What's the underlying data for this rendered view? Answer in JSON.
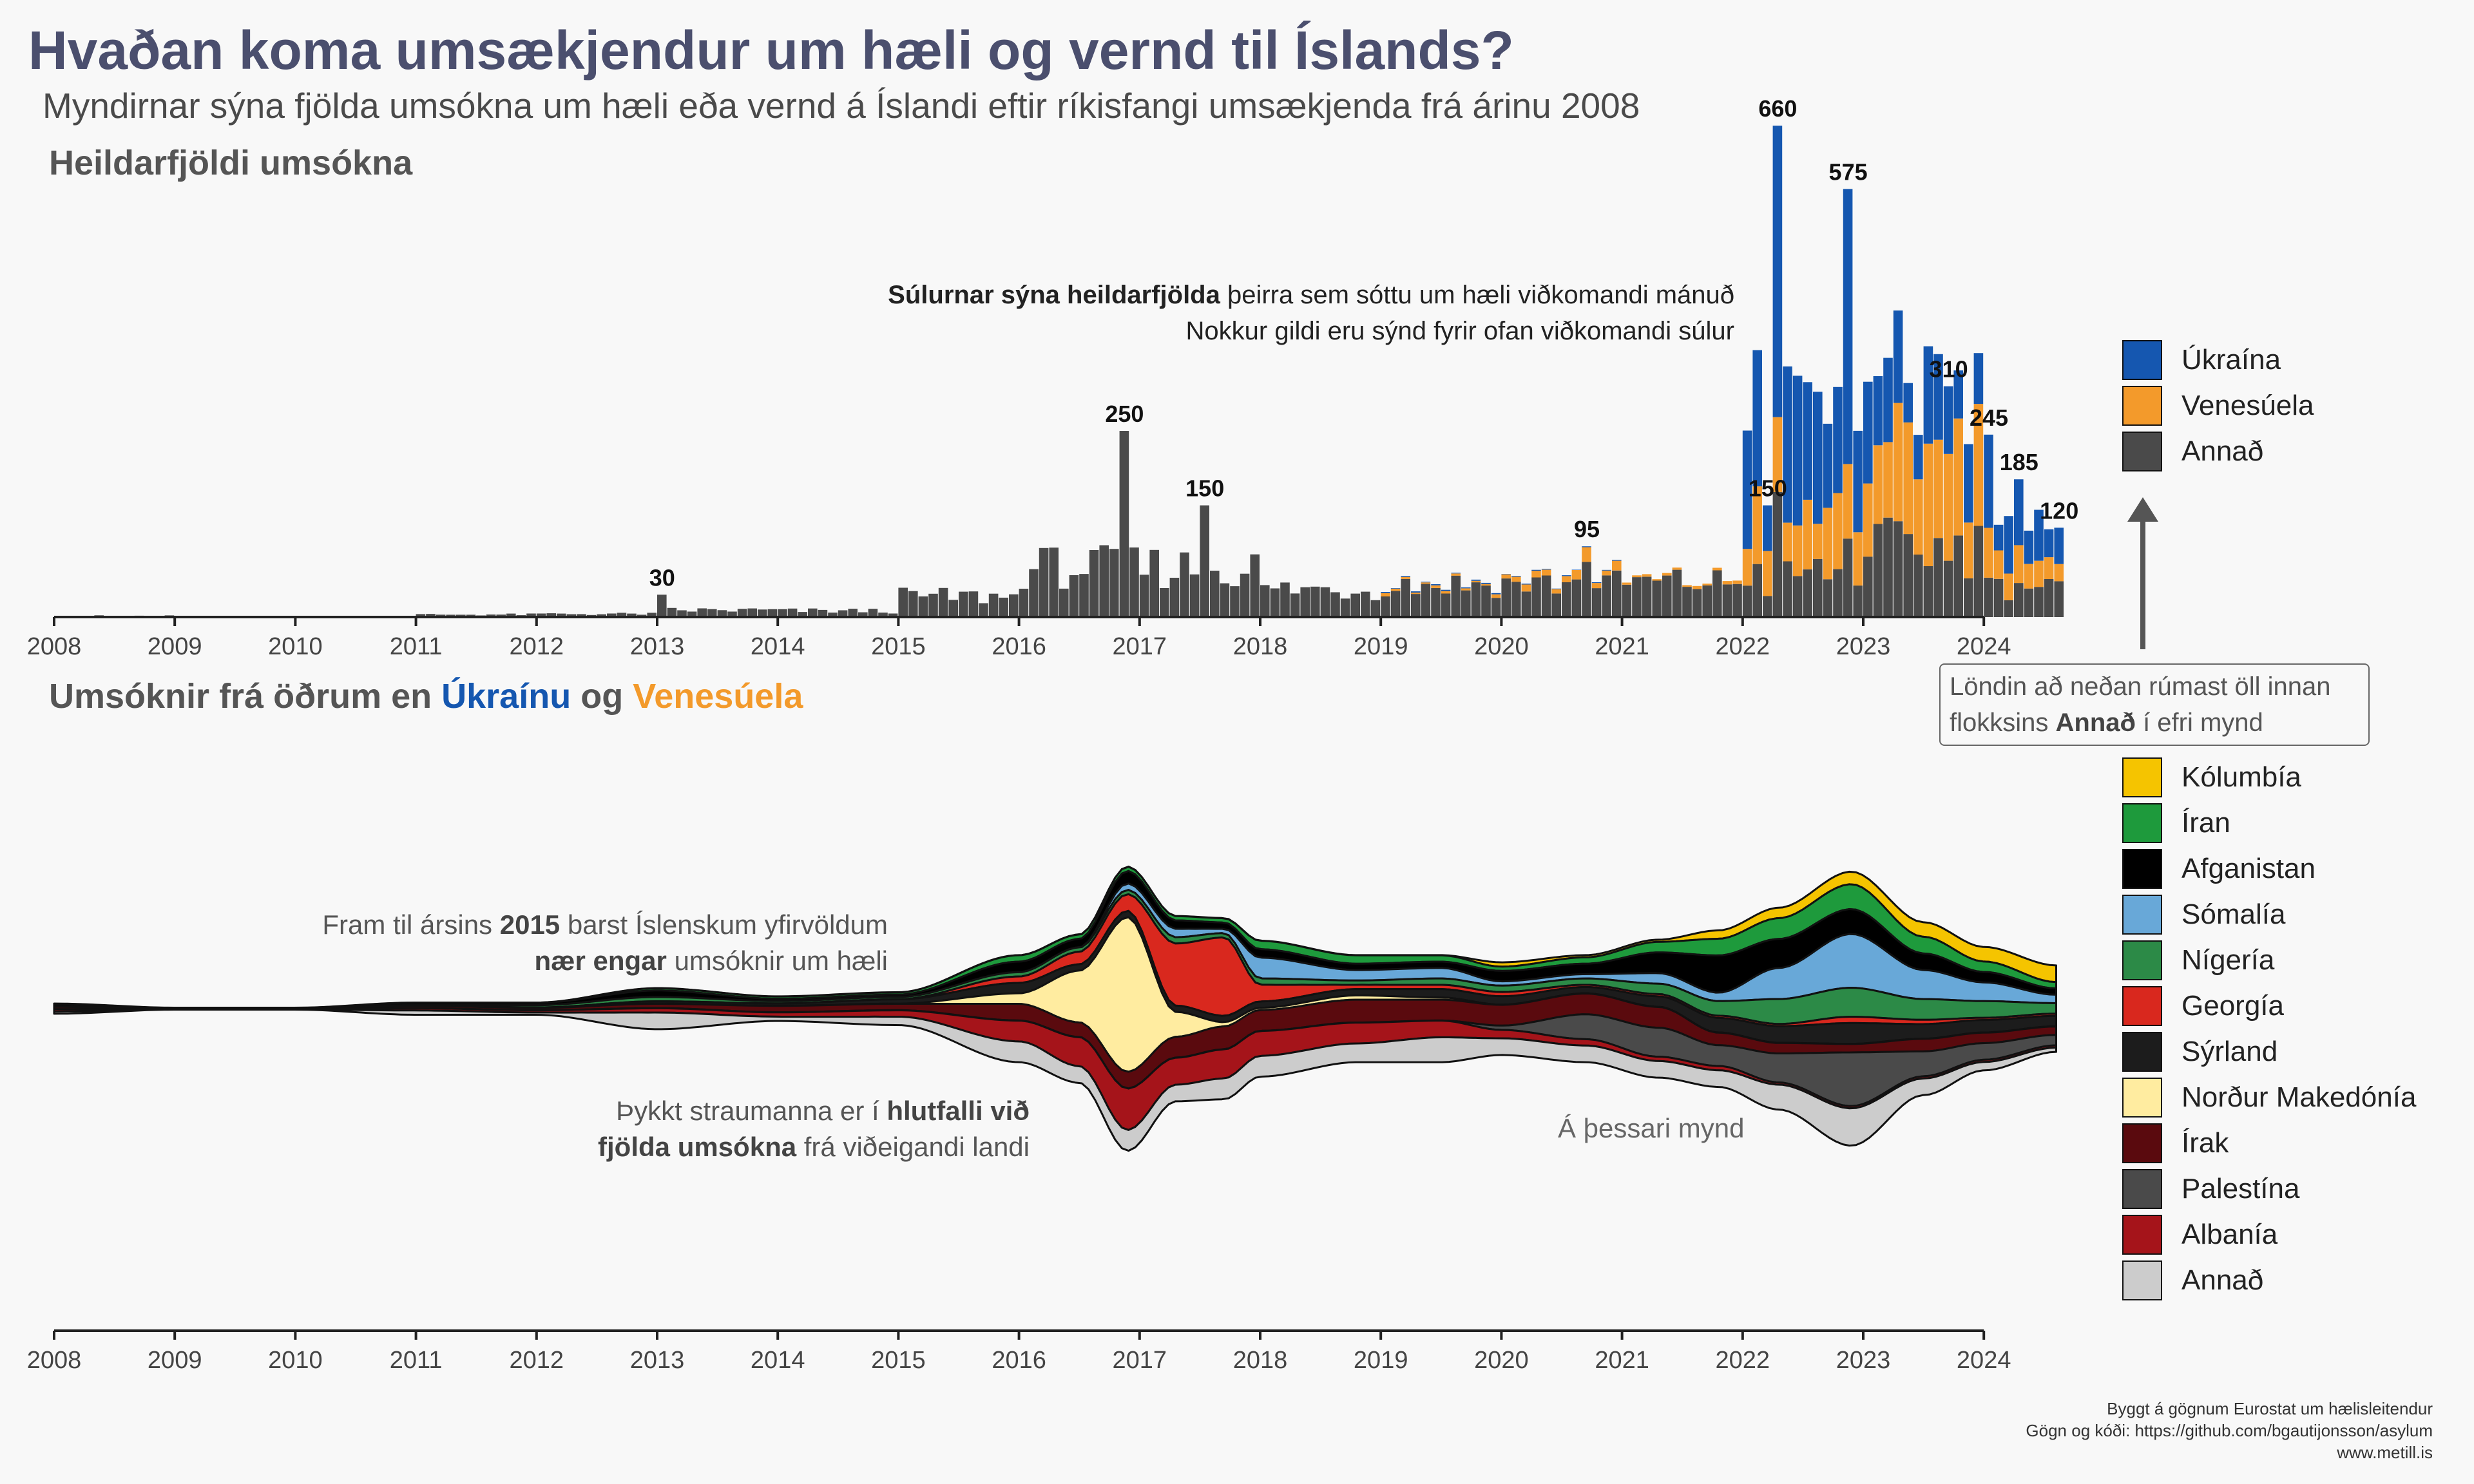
{
  "title": "Hvaðan koma umsækjendur um hæli og vernd til Íslands?",
  "subtitle": "Myndirnar sýna fjölda umsókna um hæli eða vernd á Íslandi eftir ríkisfangi umsækjenda frá árinu 2008",
  "section1_title": "Heildarfjöldi umsókna",
  "section2": {
    "prefix": "Umsóknir frá öðrum en",
    "ukraine": "Úkraínu",
    "og": "og",
    "venezuela": "Venesúela"
  },
  "annotations": {
    "bars_bold": "Súlurnar sýna heildarfjölda",
    "bars_rest": "þeirra sem sóttu um hæli viðkomandi mánuð",
    "bars_line2": "Nokkur gildi eru sýnd fyrir ofan viðkomandi súlur",
    "stream1_a": "Fram til ársins",
    "stream1_year": "2015",
    "stream1_b": "barst Íslenskum yfirvöldum",
    "stream1_bold": "nær engar",
    "stream1_c": "umsóknir um hæli",
    "stream2_a": "Þykkt straumanna er í",
    "stream2_bold1": "hlutfalli við",
    "stream2_bold2": "fjölda umsókna",
    "stream2_c": "frá viðeigandi landi",
    "stream3": "Á þessari mynd",
    "box_line1": "Löndin að neðan rúmast öll innan",
    "box_a": "flokksins",
    "box_bold": "Annað",
    "box_b": "í efri mynd"
  },
  "credits": {
    "line1": "Byggt á gögnum Eurostat um hælisleitendur",
    "line2": "Gögn og kóði:  https://github.com/bgautijonsson/asylum",
    "line3": "www.metill.is"
  },
  "colors": {
    "ukraina": "#1557b0",
    "venesuela": "#f39a2b",
    "annad": "#4a4a4a"
  },
  "chart_data": [
    {
      "type": "bar",
      "stacked": true,
      "x_axis_ticks": [
        "2008",
        "2009",
        "2010",
        "2011",
        "2012",
        "2013",
        "2014",
        "2015",
        "2016",
        "2017",
        "2018",
        "2019",
        "2020",
        "2021",
        "2022",
        "2023",
        "2024"
      ],
      "x_range": [
        "2008-01",
        "2024-08"
      ],
      "ylim": [
        0,
        680
      ],
      "labeled_values": [
        {
          "period": "2013-01",
          "value": "30"
        },
        {
          "period": "2016-11",
          "value": "250"
        },
        {
          "period": "2017-07",
          "value": "150"
        },
        {
          "period": "2020-09",
          "value": "95"
        },
        {
          "period": "2022-03",
          "value": "150"
        },
        {
          "period": "2022-04",
          "value": "660"
        },
        {
          "period": "2022-11",
          "value": "575"
        },
        {
          "period": "2023-09",
          "value": "310"
        },
        {
          "period": "2024-01",
          "value": "245"
        },
        {
          "period": "2024-04",
          "value": "185"
        },
        {
          "period": "2024-08",
          "value": "120"
        }
      ],
      "series": [
        {
          "name": "Úkraína",
          "color": "#1557b0",
          "annual_totals_approx": [
            0,
            0,
            0,
            0,
            0,
            0,
            0,
            0,
            0,
            0,
            0,
            15,
            10,
            0,
            1900,
            1150,
            650
          ]
        },
        {
          "name": "Venesúela",
          "color": "#f39a2b",
          "annual_totals_approx": [
            0,
            0,
            0,
            0,
            0,
            0,
            0,
            0,
            0,
            0,
            0,
            40,
            110,
            40,
            880,
            1570,
            330
          ]
        },
        {
          "name": "Annað",
          "color": "#4a4a4a",
          "annual_totals_approx": [
            20,
            10,
            5,
            40,
            50,
            110,
            100,
            330,
            800,
            800,
            450,
            530,
            540,
            560,
            720,
            1120,
            480
          ]
        }
      ],
      "legend": [
        "Úkraína",
        "Venesúela",
        "Annað"
      ],
      "legend_position": "right"
    },
    {
      "type": "area",
      "subtype": "streamgraph",
      "x_axis_ticks": [
        "2008",
        "2009",
        "2010",
        "2011",
        "2012",
        "2013",
        "2014",
        "2015",
        "2016",
        "2017",
        "2018",
        "2019",
        "2020",
        "2021",
        "2022",
        "2023",
        "2024"
      ],
      "x_sample_years": [
        2008,
        2009,
        2010,
        2011,
        2012,
        2013,
        2014,
        2015,
        2016,
        2016.5,
        2016.9,
        2017.3,
        2017.7,
        2018,
        2018.8,
        2019.5,
        2020,
        2020.7,
        2021.3,
        2021.8,
        2022.3,
        2022.9,
        2023.5,
        2024,
        2024.6
      ],
      "series": [
        {
          "name": "Kólumbía",
          "color": "#f5c400",
          "values": [
            0,
            0,
            0,
            0,
            0,
            0,
            0,
            0,
            0,
            0,
            0,
            0,
            0,
            0,
            0,
            0,
            2,
            1,
            1,
            4,
            5,
            6,
            7,
            7,
            8
          ]
        },
        {
          "name": "Íran",
          "color": "#1e9a3c",
          "values": [
            0,
            0,
            0,
            0,
            0,
            1,
            1,
            1,
            3,
            2,
            2,
            2,
            2,
            4,
            4,
            3,
            2,
            3,
            5,
            8,
            10,
            12,
            8,
            5,
            3
          ]
        },
        {
          "name": "Afganistan",
          "color": "#000000",
          "values": [
            1,
            0,
            0,
            1,
            1,
            3,
            1,
            1,
            5,
            4,
            6,
            4,
            3,
            4,
            3,
            3,
            5,
            5,
            10,
            18,
            14,
            12,
            8,
            5,
            3
          ]
        },
        {
          "name": "Sómalía",
          "color": "#68a8d8",
          "values": [
            0,
            0,
            0,
            0,
            0,
            0,
            0,
            0,
            0,
            0,
            3,
            4,
            2,
            10,
            5,
            5,
            2,
            2,
            5,
            4,
            15,
            26,
            14,
            9,
            4
          ]
        },
        {
          "name": "Nígería",
          "color": "#2c8a47",
          "values": [
            0,
            0,
            0,
            0,
            1,
            2,
            1,
            1,
            2,
            2,
            2,
            3,
            2,
            3,
            2,
            3,
            3,
            3,
            5,
            7,
            12,
            14,
            10,
            8,
            5
          ]
        },
        {
          "name": "Georgía",
          "color": "#d9281e",
          "values": [
            0,
            0,
            0,
            0,
            0,
            0,
            0,
            0,
            3,
            6,
            8,
            30,
            38,
            8,
            2,
            2,
            2,
            1,
            1,
            1,
            1,
            3,
            2,
            1,
            1
          ]
        },
        {
          "name": "Sýrland",
          "color": "#1c1c1c",
          "values": [
            0,
            0,
            0,
            0,
            0,
            1,
            1,
            2,
            5,
            3,
            3,
            3,
            3,
            3,
            3,
            4,
            4,
            3,
            5,
            7,
            8,
            10,
            7,
            6,
            5
          ]
        },
        {
          "name": "Norður Makedónía",
          "color": "#ffeca0",
          "values": [
            0,
            0,
            0,
            0,
            0,
            0,
            0,
            0,
            5,
            25,
            75,
            12,
            2,
            1,
            2,
            1,
            0,
            0,
            0,
            0,
            0,
            0,
            0,
            0,
            0
          ]
        },
        {
          "name": "Írak",
          "color": "#5a0a0e",
          "values": [
            1,
            0,
            0,
            1,
            1,
            2,
            3,
            3,
            8,
            7,
            8,
            10,
            11,
            10,
            11,
            10,
            10,
            10,
            10,
            6,
            5,
            4,
            6,
            5,
            4
          ]
        },
        {
          "name": "Palestína",
          "color": "#4a4a4a",
          "values": [
            0,
            0,
            0,
            0,
            0,
            0,
            0,
            0,
            0,
            0,
            0,
            0,
            0,
            0,
            0,
            0,
            2,
            12,
            14,
            10,
            14,
            26,
            12,
            8,
            5
          ]
        },
        {
          "name": "Albanía",
          "color": "#a5141a",
          "values": [
            1,
            0,
            0,
            1,
            1,
            2,
            2,
            3,
            10,
            14,
            20,
            13,
            14,
            12,
            10,
            8,
            4,
            3,
            2,
            2,
            1,
            1,
            1,
            1,
            1
          ]
        },
        {
          "name": "Annað",
          "color": "#cccccc",
          "values": [
            1,
            0,
            0,
            2,
            1,
            8,
            2,
            4,
            10,
            8,
            10,
            8,
            10,
            10,
            9,
            12,
            8,
            8,
            8,
            8,
            12,
            18,
            8,
            4,
            2
          ]
        }
      ],
      "legend": [
        "Kólumbía",
        "Íran",
        "Afganistan",
        "Sómalía",
        "Nígería",
        "Georgía",
        "Sýrland",
        "Norður Makedónía",
        "Írak",
        "Palestína",
        "Albanía",
        "Annað"
      ],
      "legend_position": "right"
    }
  ]
}
